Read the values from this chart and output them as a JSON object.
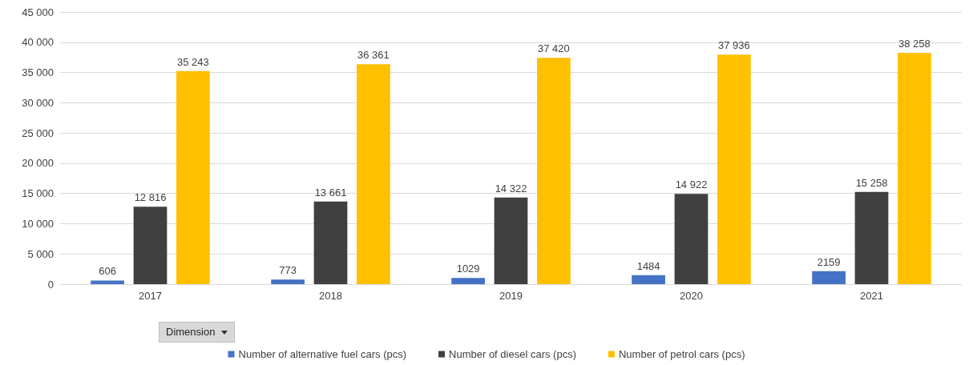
{
  "chart_data": {
    "type": "bar",
    "categories": [
      "2017",
      "2018",
      "2019",
      "2020",
      "2021"
    ],
    "series": [
      {
        "name": "Number of alternative fuel cars (pcs)",
        "color": "#4472c4",
        "values": [
          606,
          773,
          1029,
          1484,
          2159
        ],
        "value_labels": [
          "606",
          "773",
          "1029",
          "1484",
          "2159"
        ]
      },
      {
        "name": "Number of diesel cars (pcs)",
        "color": "#404040",
        "values": [
          12816,
          13661,
          14322,
          14922,
          15258
        ],
        "value_labels": [
          "12 816",
          "13 661",
          "14 322",
          "14 922",
          "15 258"
        ]
      },
      {
        "name": "Number of petrol cars (pcs)",
        "color": "#ffc000",
        "values": [
          35243,
          36361,
          37420,
          37936,
          38258
        ],
        "value_labels": [
          "35 243",
          "36 361",
          "37 420",
          "37 936",
          "38 258"
        ]
      }
    ],
    "ylim": [
      0,
      45000
    ],
    "yticks": [
      0,
      {
        "value": 5000,
        "label": "5 000"
      },
      {
        "value": 10000,
        "label": "10 000"
      },
      {
        "value": 15000,
        "label": "15 000"
      },
      {
        "value": 20000,
        "label": "20 000"
      },
      {
        "value": 25000,
        "label": "25 000"
      },
      {
        "value": 30000,
        "label": "30 000"
      },
      {
        "value": 35000,
        "label": "35 000"
      },
      {
        "value": 40000,
        "label": "40 000"
      },
      {
        "value": 45000,
        "label": "45 000"
      }
    ],
    "grid": "y",
    "legend": "bottom",
    "annotations": [
      "Dimension"
    ]
  }
}
